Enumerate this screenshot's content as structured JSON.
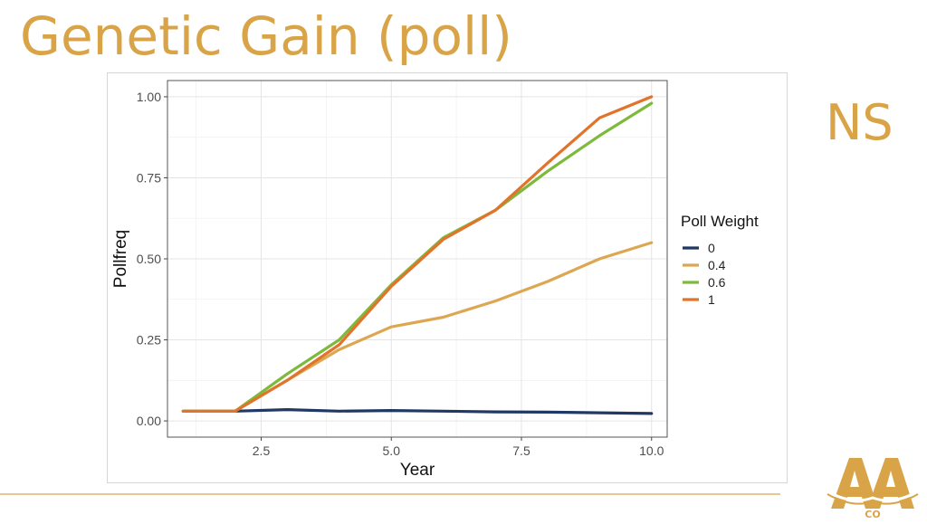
{
  "slide": {
    "title": "Genetic Gain (poll)",
    "side_label": "NS"
  },
  "colors": {
    "accent": "#d9a447"
  },
  "chart_data": {
    "type": "line",
    "xlabel": "Year",
    "ylabel": "Pollfreq",
    "xlim": [
      0.7,
      10.3
    ],
    "ylim": [
      -0.05,
      1.05
    ],
    "xticks": [
      2.5,
      5.0,
      7.5,
      10.0
    ],
    "xtick_labels": [
      "2.5",
      "5.0",
      "7.5",
      "10.0"
    ],
    "yticks": [
      0,
      0.25,
      0.5,
      0.75,
      1.0
    ],
    "ytick_labels": [
      "0.00",
      "0.25",
      "0.50",
      "0.75",
      "1.00"
    ],
    "grid": true,
    "legend": {
      "title": "Poll Weight",
      "position": "right"
    },
    "x": [
      1,
      2,
      3,
      4,
      5,
      6,
      7,
      8,
      9,
      10
    ],
    "series": [
      {
        "name": "0",
        "color": "#1f3864",
        "values": [
          0.03,
          0.03,
          0.035,
          0.03,
          0.032,
          0.03,
          0.028,
          0.027,
          0.025,
          0.023
        ]
      },
      {
        "name": "0.4",
        "color": "#dda752",
        "values": [
          0.03,
          0.03,
          0.125,
          0.22,
          0.29,
          0.32,
          0.37,
          0.43,
          0.5,
          0.55
        ]
      },
      {
        "name": "0.6",
        "color": "#7dba3c",
        "values": [
          0.03,
          0.03,
          0.145,
          0.25,
          0.42,
          0.565,
          0.65,
          0.77,
          0.88,
          0.98
        ]
      },
      {
        "name": "1",
        "color": "#e2732b",
        "values": [
          0.03,
          0.03,
          0.125,
          0.235,
          0.415,
          0.56,
          0.65,
          0.795,
          0.935,
          1.0
        ]
      }
    ]
  },
  "logo": {
    "text": "AA",
    "subtext": "CO"
  }
}
